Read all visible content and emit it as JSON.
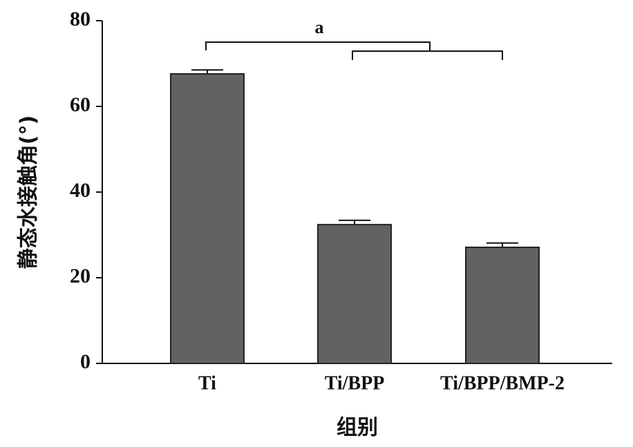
{
  "chart_data": {
    "type": "bar",
    "categories": [
      "Ti",
      "Ti/BPP",
      "Ti/BPP/BMP-2"
    ],
    "values": [
      67.6,
      32.4,
      27.1
    ],
    "errors": [
      0.9,
      1.0,
      1.0
    ],
    "color": "#636163",
    "ylim": [
      0,
      80
    ],
    "yticks": [
      0,
      20,
      40,
      60,
      80
    ],
    "ylabel": "静态水接触角(°)",
    "xlabel": "组别",
    "annotation": "a"
  }
}
